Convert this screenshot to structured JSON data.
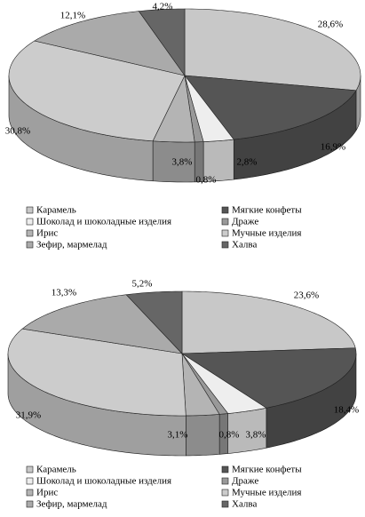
{
  "chart_data": [
    {
      "type": "pie",
      "categories": [
        "Карамель",
        "Мягкие конфеты",
        "Шоколад и шоколадные изделия",
        "Драже",
        "Ирис",
        "Мучные изделия",
        "Зефир, мармелад",
        "Халва"
      ],
      "values": [
        28.6,
        16.9,
        2.8,
        0.8,
        3.8,
        30.8,
        12.1,
        4.2
      ],
      "value_labels": [
        "28,6%",
        "16,9%",
        "2,8%",
        "0,8%",
        "3,8%",
        "30,8%",
        "12,1%",
        "4,2%"
      ],
      "colors": [
        "#c8c8c8",
        "#555555",
        "#eeeeee",
        "#999999",
        "#b4b4b4",
        "#cccccc",
        "#aaaaaa",
        "#666666"
      ]
    },
    {
      "type": "pie",
      "categories": [
        "Карамель",
        "Мягкие конфеты",
        "Шоколад и шоколадные изделия",
        "Драже",
        "Ирис",
        "Мучные изделия",
        "Зефир, мармелад",
        "Халва"
      ],
      "values": [
        23.6,
        18.4,
        3.8,
        0.8,
        3.1,
        31.9,
        13.3,
        5.2
      ],
      "value_labels": [
        "23,6%",
        "18,4%",
        "3,8%",
        "0,8%",
        "3,1%",
        "31,9%",
        "13,3%",
        "5,2%"
      ],
      "colors": [
        "#c8c8c8",
        "#555555",
        "#eeeeee",
        "#999999",
        "#b4b4b4",
        "#cccccc",
        "#aaaaaa",
        "#666666"
      ]
    }
  ]
}
